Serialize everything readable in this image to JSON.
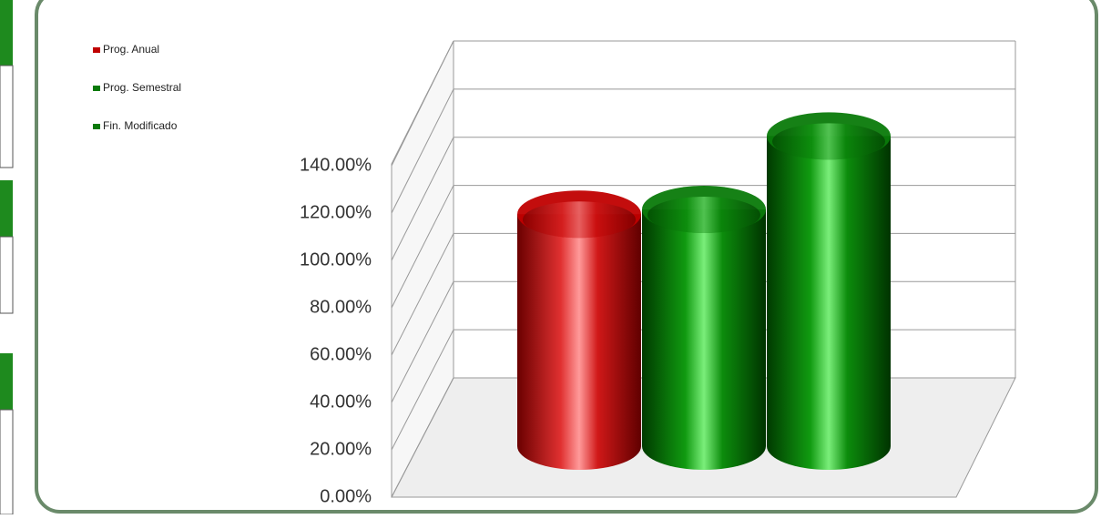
{
  "chart_data": {
    "type": "bar3d",
    "series": [
      {
        "name": "Prog. Anual",
        "color": "#c00000",
        "values": [
          98
        ]
      },
      {
        "name": "Prog. Semestral",
        "color": "#0a7a0a",
        "values": [
          100
        ]
      },
      {
        "name": "Fin. Modificado",
        "color": "#0a7a0a",
        "values": [
          131
        ]
      }
    ],
    "ylim": [
      0,
      140
    ],
    "yticks": [
      {
        "value": 0,
        "label": "0.00%"
      },
      {
        "value": 20,
        "label": "20.00%"
      },
      {
        "value": 40,
        "label": "40.00%"
      },
      {
        "value": 60,
        "label": "60.00%"
      },
      {
        "value": 80,
        "label": "80.00%"
      },
      {
        "value": 100,
        "label": "100.00%"
      },
      {
        "value": 120,
        "label": "120.00%"
      },
      {
        "value": 140,
        "label": "140.00%"
      }
    ],
    "grid": true,
    "legend": "top-left"
  }
}
